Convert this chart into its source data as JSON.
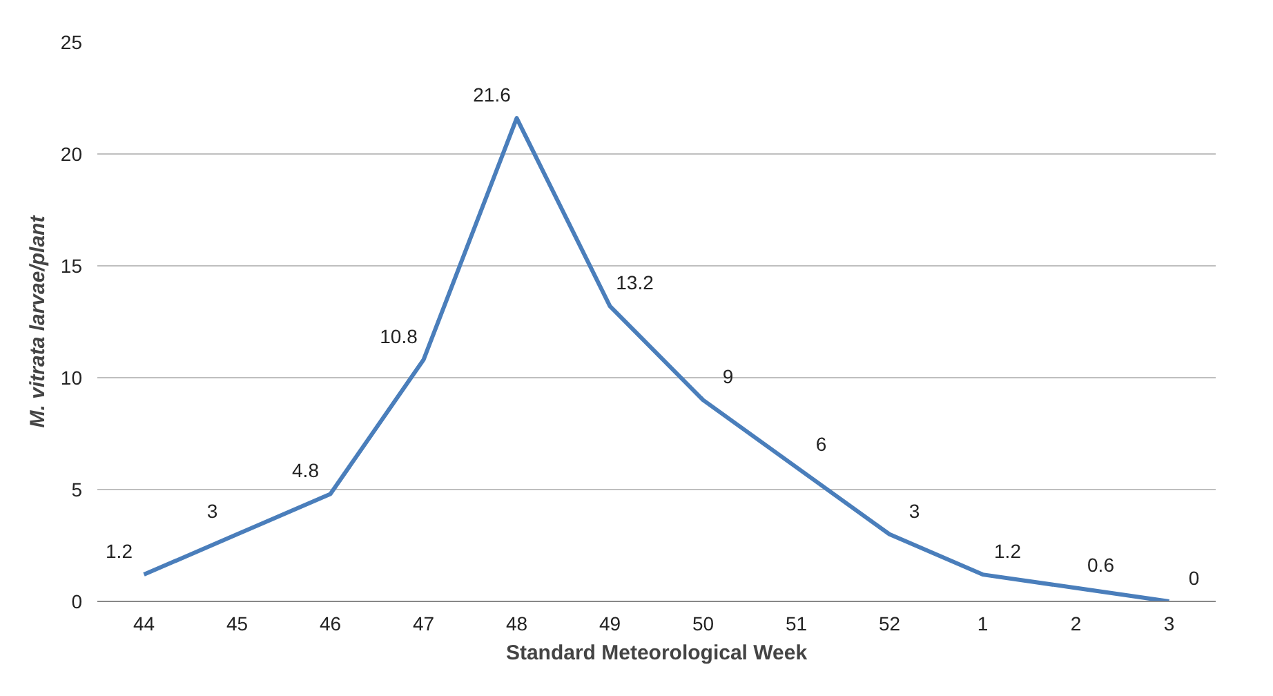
{
  "chart_data": {
    "type": "line",
    "xlabel": "Standard Meteorological Week",
    "ylabel": "M. vitrata larvae/plant",
    "categories": [
      "44",
      "45",
      "46",
      "47",
      "48",
      "49",
      "50",
      "51",
      "52",
      "1",
      "2",
      "3"
    ],
    "series": [
      {
        "color": "#4a7ebb",
        "values": [
          1.2,
          3,
          4.8,
          10.8,
          21.6,
          13.2,
          9,
          6,
          3,
          1.2,
          0.6,
          0
        ]
      }
    ],
    "ylim": [
      0,
      25
    ],
    "yticks": [
      0,
      5,
      10,
      15,
      20,
      25
    ],
    "grid": "y",
    "data_labels": true,
    "marker": "none",
    "line_style": "solid"
  }
}
